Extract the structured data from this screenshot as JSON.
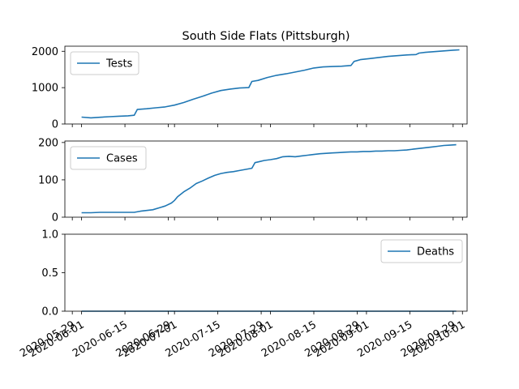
{
  "chart_data": {
    "type": "line",
    "title": "South Side Flats (Pittsburgh)",
    "line_color": "#1f77b4",
    "x_tick_labels": [
      "2020-05-29",
      "2020-06-01",
      "2020-06-15",
      "2020-06-29",
      "2020-07-01",
      "2020-07-15",
      "2020-07-29",
      "2020-08-01",
      "2020-08-15",
      "2020-08-29",
      "2020-09-01",
      "2020-09-15",
      "2020-09-29",
      "2020-10-01"
    ],
    "x_tick_days": [
      0,
      3,
      17,
      31,
      33,
      47,
      61,
      64,
      78,
      92,
      95,
      109,
      123,
      126
    ],
    "x_range_days": [
      -2.4,
      127.5
    ],
    "panels": [
      {
        "name": "tests",
        "legend": "Tests",
        "legend_loc": "upper left",
        "ylim": [
          0,
          2140
        ],
        "yticks": [
          0,
          1000,
          2000
        ],
        "ytick_labels": [
          "0",
          "1000",
          "2000"
        ],
        "x": [
          3,
          6,
          9,
          12,
          15,
          18,
          20,
          21,
          24,
          27,
          30,
          33,
          36,
          39,
          42,
          45,
          48,
          51,
          54,
          57,
          58,
          60,
          63,
          66,
          69,
          72,
          75,
          78,
          81,
          84,
          87,
          90,
          91,
          93,
          96,
          99,
          102,
          105,
          108,
          111,
          112,
          114,
          117,
          120,
          123,
          125
        ],
        "y": [
          190,
          170,
          185,
          200,
          215,
          225,
          240,
          400,
          420,
          445,
          470,
          520,
          590,
          680,
          760,
          850,
          920,
          960,
          990,
          1000,
          1170,
          1200,
          1280,
          1340,
          1380,
          1430,
          1480,
          1540,
          1570,
          1580,
          1590,
          1610,
          1720,
          1770,
          1800,
          1830,
          1860,
          1880,
          1900,
          1910,
          1950,
          1970,
          1990,
          2010,
          2030,
          2040
        ]
      },
      {
        "name": "cases",
        "legend": "Cases",
        "legend_loc": "upper left",
        "ylim": [
          0,
          204
        ],
        "yticks": [
          0,
          100,
          200
        ],
        "ytick_labels": [
          "0",
          "100",
          "200"
        ],
        "x": [
          3,
          6,
          9,
          12,
          15,
          18,
          20,
          22,
          24,
          26,
          28,
          30,
          32,
          33,
          34,
          36,
          38,
          40,
          42,
          44,
          46,
          48,
          50,
          52,
          54,
          56,
          58,
          59,
          60,
          62,
          64,
          66,
          68,
          70,
          72,
          74,
          76,
          78,
          80,
          82,
          84,
          86,
          88,
          90,
          92,
          94,
          96,
          98,
          100,
          102,
          104,
          106,
          108,
          110,
          112,
          114,
          116,
          118,
          120,
          122,
          124
        ],
        "y": [
          12,
          12,
          13,
          13,
          13,
          13,
          13,
          16,
          18,
          20,
          25,
          30,
          38,
          45,
          55,
          68,
          78,
          90,
          97,
          105,
          112,
          117,
          120,
          122,
          125,
          128,
          131,
          146,
          148,
          152,
          154,
          157,
          162,
          163,
          162,
          164,
          166,
          168,
          170,
          171,
          172,
          173,
          174,
          175,
          175,
          176,
          176,
          177,
          177,
          178,
          178,
          179,
          180,
          182,
          184,
          186,
          188,
          190,
          192,
          193,
          194
        ]
      },
      {
        "name": "deaths",
        "legend": "Deaths",
        "legend_loc": "upper right",
        "ylim": [
          0,
          1.0
        ],
        "yticks": [
          0,
          0.5,
          1.0
        ],
        "ytick_labels": [
          "0.0",
          "0.5",
          "1.0"
        ],
        "x": [
          3,
          124
        ],
        "y": [
          0,
          0
        ]
      }
    ]
  }
}
